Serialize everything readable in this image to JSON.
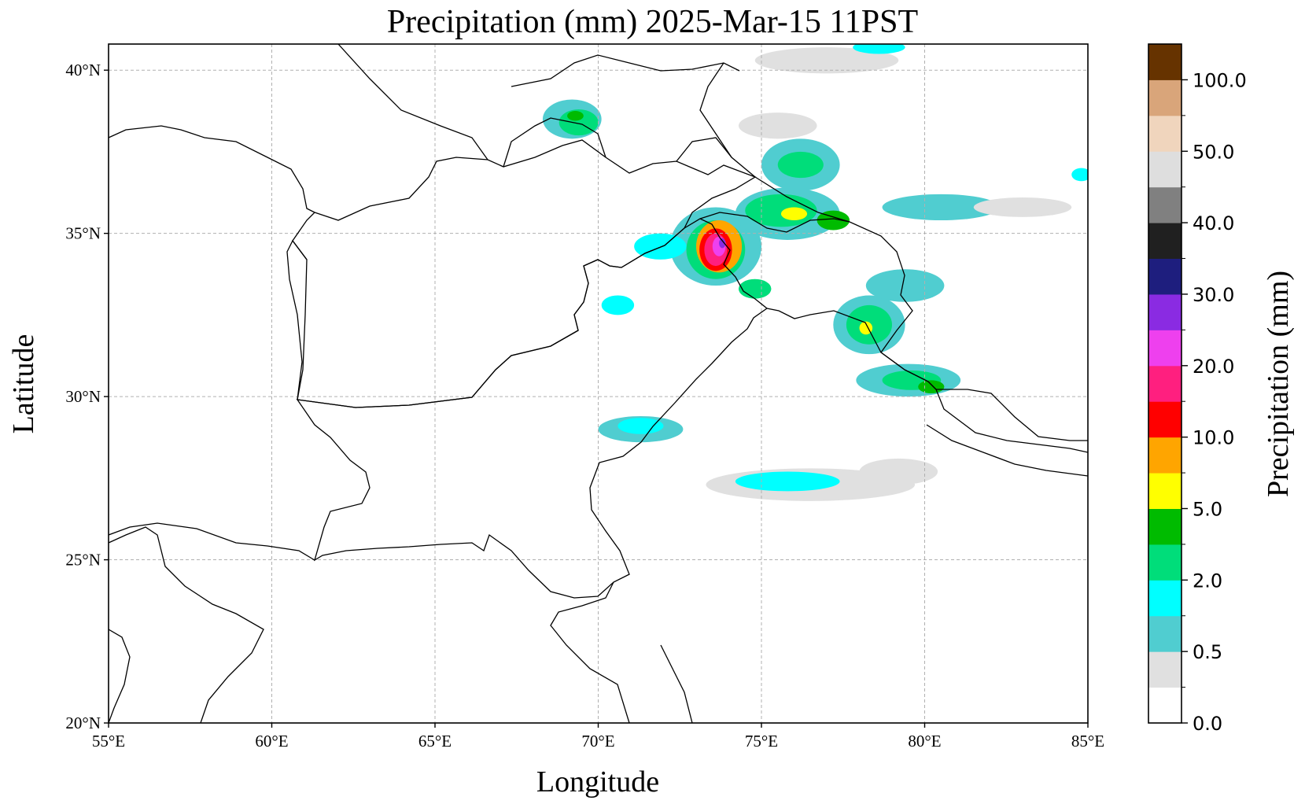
{
  "title": "Precipitation (mm)  2025-Mar-15 11PST",
  "axes": {
    "xlabel": "Longitude",
    "ylabel": "Latitude",
    "lon_range": [
      55,
      85
    ],
    "lat_range": [
      20,
      40.8
    ],
    "lon_ticks": [
      55,
      60,
      65,
      70,
      75,
      80,
      85
    ],
    "lon_tick_labels": [
      "55°E",
      "60°E",
      "65°E",
      "70°E",
      "75°E",
      "80°E",
      "85°E"
    ],
    "lat_ticks": [
      20,
      25,
      30,
      35,
      40
    ],
    "lat_tick_labels": [
      "20°N",
      "25°N",
      "30°N",
      "35°N",
      "40°N"
    ],
    "grid": true
  },
  "colorbar": {
    "label": "Precipitation (mm)",
    "tick_labels": [
      "0.0",
      "0.5",
      "2.0",
      "5.0",
      "10.0",
      "20.0",
      "30.0",
      "40.0",
      "50.0",
      "100.0"
    ],
    "colors_bottom_to_top": [
      "#ffffff",
      "#e0e0e0",
      "#50cdd0",
      "#00ffff",
      "#00dd7a",
      "#00bb00",
      "#ffff00",
      "#ffa500",
      "#ff0000",
      "#ff1f7f",
      "#ee40ee",
      "#8a2be2",
      "#1e1e7e",
      "#202020",
      "#808080",
      "#dedede",
      "#f0d5bd",
      "#d9a57a",
      "#663300"
    ]
  },
  "chart_data": {
    "type": "heatmap",
    "title": "Precipitation (mm)  2025-Mar-15 11PST",
    "xlabel": "Longitude",
    "ylabel": "Latitude",
    "xlim": [
      55,
      85
    ],
    "ylim": [
      20,
      40.8
    ],
    "units": "mm",
    "precip_cells": [
      {
        "lon": 69.2,
        "lat": 38.5,
        "rx": 0.9,
        "ry": 0.6,
        "level": 1
      },
      {
        "lon": 69.4,
        "lat": 38.4,
        "rx": 0.6,
        "ry": 0.4,
        "level": 3
      },
      {
        "lon": 69.3,
        "lat": 38.6,
        "rx": 0.25,
        "ry": 0.15,
        "level": 4
      },
      {
        "lon": 73.6,
        "lat": 34.6,
        "rx": 1.4,
        "ry": 1.2,
        "level": 1
      },
      {
        "lon": 73.6,
        "lat": 34.5,
        "rx": 0.9,
        "ry": 0.9,
        "level": 3
      },
      {
        "lon": 73.7,
        "lat": 34.6,
        "rx": 0.7,
        "ry": 0.8,
        "level": 6
      },
      {
        "lon": 73.6,
        "lat": 34.5,
        "rx": 0.5,
        "ry": 0.65,
        "level": 7
      },
      {
        "lon": 73.6,
        "lat": 34.5,
        "rx": 0.35,
        "ry": 0.5,
        "level": 8
      },
      {
        "lon": 73.7,
        "lat": 34.6,
        "rx": 0.2,
        "ry": 0.3,
        "level": 9
      },
      {
        "lon": 73.8,
        "lat": 34.7,
        "rx": 0.1,
        "ry": 0.15,
        "level": 10
      },
      {
        "lon": 71.9,
        "lat": 34.6,
        "rx": 0.8,
        "ry": 0.4,
        "level": 2
      },
      {
        "lon": 75.8,
        "lat": 35.6,
        "rx": 1.6,
        "ry": 0.8,
        "level": 1
      },
      {
        "lon": 75.6,
        "lat": 35.7,
        "rx": 1.1,
        "ry": 0.5,
        "level": 3
      },
      {
        "lon": 76.0,
        "lat": 35.6,
        "rx": 0.4,
        "ry": 0.2,
        "level": 5
      },
      {
        "lon": 77.2,
        "lat": 35.4,
        "rx": 0.5,
        "ry": 0.3,
        "level": 4
      },
      {
        "lon": 76.2,
        "lat": 37.1,
        "rx": 1.2,
        "ry": 0.8,
        "level": 1
      },
      {
        "lon": 76.2,
        "lat": 37.1,
        "rx": 0.7,
        "ry": 0.4,
        "level": 3
      },
      {
        "lon": 78.3,
        "lat": 32.2,
        "rx": 1.1,
        "ry": 0.9,
        "level": 1
      },
      {
        "lon": 78.3,
        "lat": 32.2,
        "rx": 0.7,
        "ry": 0.6,
        "level": 3
      },
      {
        "lon": 78.2,
        "lat": 32.1,
        "rx": 0.2,
        "ry": 0.2,
        "level": 5
      },
      {
        "lon": 79.5,
        "lat": 30.5,
        "rx": 1.6,
        "ry": 0.5,
        "level": 1
      },
      {
        "lon": 79.6,
        "lat": 30.5,
        "rx": 0.9,
        "ry": 0.3,
        "level": 3
      },
      {
        "lon": 76.5,
        "lat": 27.3,
        "rx": 3.2,
        "ry": 0.5,
        "level": 0
      },
      {
        "lon": 75.8,
        "lat": 27.4,
        "rx": 1.6,
        "ry": 0.3,
        "level": 2
      },
      {
        "lon": 79.2,
        "lat": 27.7,
        "rx": 1.2,
        "ry": 0.4,
        "level": 0
      },
      {
        "lon": 71.3,
        "lat": 29.0,
        "rx": 1.3,
        "ry": 0.4,
        "level": 1
      },
      {
        "lon": 71.3,
        "lat": 29.1,
        "rx": 0.7,
        "ry": 0.25,
        "level": 2
      },
      {
        "lon": 80.5,
        "lat": 35.8,
        "rx": 1.8,
        "ry": 0.4,
        "level": 1
      },
      {
        "lon": 79.4,
        "lat": 33.4,
        "rx": 1.2,
        "ry": 0.5,
        "level": 1
      },
      {
        "lon": 75.5,
        "lat": 38.3,
        "rx": 1.2,
        "ry": 0.4,
        "level": 0
      },
      {
        "lon": 77.0,
        "lat": 40.3,
        "rx": 2.2,
        "ry": 0.4,
        "level": 0
      },
      {
        "lon": 78.6,
        "lat": 40.7,
        "rx": 0.8,
        "ry": 0.2,
        "level": 2
      },
      {
        "lon": 74.8,
        "lat": 33.3,
        "rx": 0.5,
        "ry": 0.3,
        "level": 3
      },
      {
        "lon": 70.6,
        "lat": 32.8,
        "rx": 0.5,
        "ry": 0.3,
        "level": 2
      },
      {
        "lon": 80.2,
        "lat": 30.3,
        "rx": 0.4,
        "ry": 0.2,
        "level": 4
      },
      {
        "lon": 83.0,
        "lat": 35.8,
        "rx": 1.5,
        "ry": 0.3,
        "level": 0
      },
      {
        "lon": 84.8,
        "lat": 36.8,
        "rx": 0.3,
        "ry": 0.2,
        "level": 2
      }
    ]
  }
}
